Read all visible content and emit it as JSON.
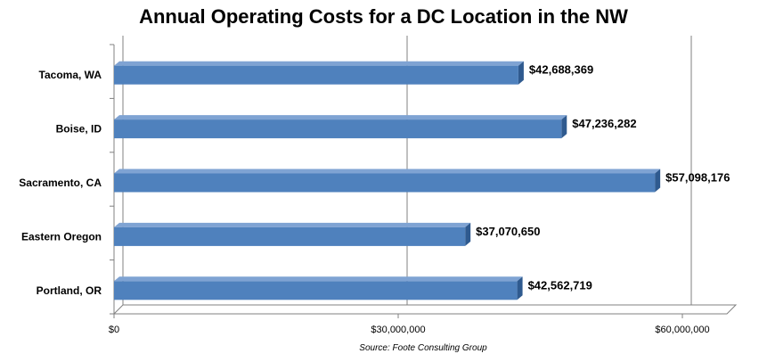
{
  "chart_data": {
    "type": "bar",
    "orientation": "horizontal",
    "title": "Annual Operating Costs for a DC Location in the NW",
    "source": "Source: Foote Consulting Group",
    "xlabel": "",
    "ylabel": "",
    "categories": [
      "Tacoma, WA",
      "Boise, ID",
      "Sacramento, CA",
      "Eastern Oregon",
      "Portland, OR"
    ],
    "values": [
      42688369,
      47236282,
      57098176,
      37070650,
      42562719
    ],
    "data_labels": [
      "$42,688,369",
      "$47,236,282",
      "$57,098,176",
      "$37,070,650",
      "$42,562,719"
    ],
    "xlim": [
      0,
      60000000
    ],
    "x_ticks": [
      0,
      30000000,
      60000000
    ],
    "x_tick_labels": [
      "$0",
      "$30,000,000",
      "$60,000,000"
    ],
    "grid": "vertical major gridlines",
    "legend": "none",
    "style": "3D bars",
    "colors": {
      "bar": "#4F81BD",
      "bar_top": "#7FA3D3",
      "bar_side": "#2F5A8F",
      "grid": "#808080",
      "text": "#000000"
    }
  }
}
